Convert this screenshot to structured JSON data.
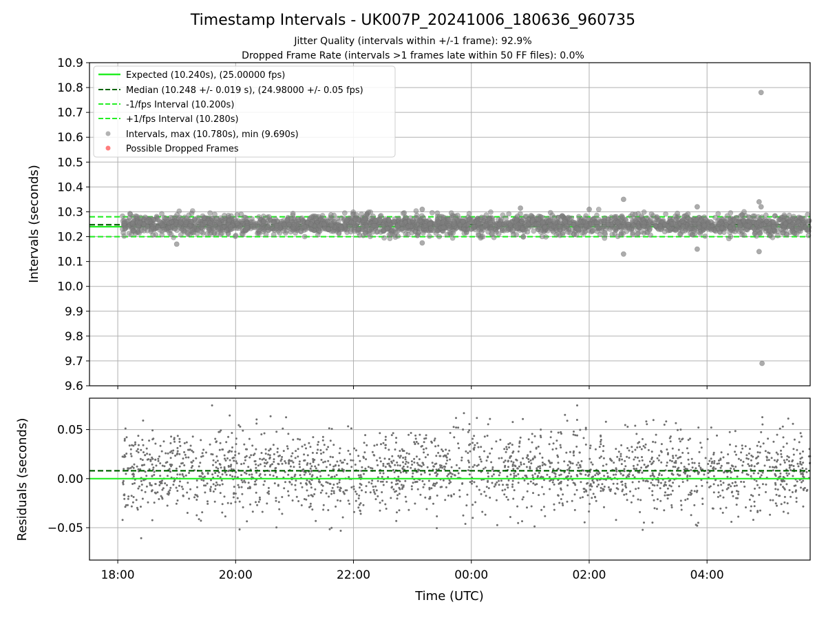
{
  "chart_data": [
    {
      "type": "scatter",
      "title": "Timestamp Intervals - UK007P_20241006_180636_960735",
      "subtitle_lines": [
        "Jitter Quality (intervals within +/-1 frame): 92.9%",
        "Dropped Frame Rate (intervals >1 frames late within 50 FF files): 0.0%"
      ],
      "ylabel": "Intervals (seconds)",
      "ylim": [
        9.6,
        10.9
      ],
      "y_ticks": [
        "9.6",
        "9.7",
        "9.8",
        "9.9",
        "10.0",
        "10.1",
        "10.2",
        "10.3",
        "10.4",
        "10.5",
        "10.6",
        "10.7",
        "10.8",
        "10.9"
      ],
      "xlim_hours": [
        17.52,
        29.75
      ],
      "x_ticks": [
        "18:00",
        "20:00",
        "22:00",
        "00:00",
        "02:00",
        "04:00"
      ],
      "grid": true,
      "legend_position": "top-left",
      "lines": [
        {
          "name": "Expected (10.240s), (25.00000 fps)",
          "y": 10.24,
          "style": "solid",
          "color": "#22ee22"
        },
        {
          "name": "Median (10.248 +/- 0.019 s), (24.98000 +/- 0.05 fps)",
          "y": 10.248,
          "style": "dashed",
          "color": "#006400"
        },
        {
          "name": "-1/fps Interval (10.200s)",
          "y": 10.2,
          "style": "dashed",
          "color": "#22ee22"
        },
        {
          "name": "+1/fps Interval (10.280s)",
          "y": 10.28,
          "style": "dashed",
          "color": "#22ee22"
        }
      ],
      "scatter_series": [
        {
          "name": "Intervals, max (10.780s), min (9.690s)",
          "color": "#808080",
          "x_range_hours": [
            18.08,
            29.75
          ],
          "center": 10.248,
          "spread": 0.019
        },
        {
          "name": "Possible Dropped Frames",
          "color": "#ff6666",
          "points": []
        }
      ],
      "outliers": [
        {
          "x": "04:55",
          "y": 10.78
        },
        {
          "x": "04:56",
          "y": 9.69
        },
        {
          "x": "04:53",
          "y": 10.34
        },
        {
          "x": "04:55",
          "y": 10.32
        },
        {
          "x": "04:53",
          "y": 10.14
        },
        {
          "x": "02:35",
          "y": 10.35
        },
        {
          "x": "02:35",
          "y": 10.13
        },
        {
          "x": "03:50",
          "y": 10.32
        },
        {
          "x": "03:50",
          "y": 10.15
        },
        {
          "x": "19:00",
          "y": 10.17
        },
        {
          "x": "23:10",
          "y": 10.175
        },
        {
          "x": "00:50",
          "y": 10.315
        },
        {
          "x": "23:10",
          "y": 10.31
        },
        {
          "x": "02:00",
          "y": 10.31
        }
      ]
    },
    {
      "type": "scatter",
      "ylabel": "Residuals (seconds)",
      "xlabel": "Time (UTC)",
      "ylim": [
        -0.083,
        0.082
      ],
      "y_ticks": [
        "−0.05",
        "0.00",
        "0.05"
      ],
      "xlim_hours": [
        17.52,
        29.75
      ],
      "x_ticks": [
        "18:00",
        "20:00",
        "22:00",
        "00:00",
        "02:00",
        "04:00"
      ],
      "grid": true,
      "lines": [
        {
          "name": "Expected",
          "y": 0.0,
          "style": "solid",
          "color": "#22ee22"
        },
        {
          "name": "Median",
          "y": 0.008,
          "style": "dashed",
          "color": "#006400"
        }
      ],
      "scatter_series": [
        {
          "name": "Residuals",
          "color": "#6e6e6e",
          "x_range_hours": [
            18.08,
            29.75
          ],
          "center": 0.008,
          "spread": 0.021
        }
      ]
    }
  ]
}
